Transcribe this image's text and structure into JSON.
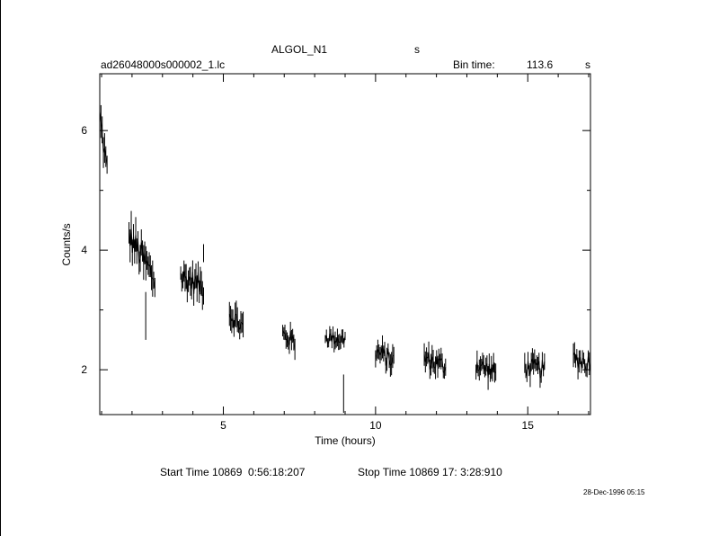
{
  "header": {
    "title": "ALGOL_N1",
    "title_suffix": "s",
    "filename": "ad26048000s000002_1.lc",
    "bin_time_label": "Bin time:",
    "bin_time_value": "113.6",
    "bin_time_unit": "s"
  },
  "footer": {
    "start_time": "Start Time 10869  0:56:18:207",
    "stop_time": "Stop Time 10869 17: 3:28:910",
    "timestamp": "28-Dec-1996 05:15"
  },
  "chart_data": {
    "type": "scatter",
    "xlabel": "Time (hours)",
    "ylabel": "Counts/s",
    "xlim": [
      0.94,
      17.06
    ],
    "ylim": [
      1.25,
      6.95
    ],
    "x_ticks": [
      5,
      10,
      15
    ],
    "y_ticks": [
      2,
      4,
      6
    ],
    "error_bars": true,
    "grid": false,
    "segments": [
      {
        "x_start": 0.94,
        "x_end": 1.18,
        "mean_start": 6.25,
        "mean_end": 5.3,
        "spread": 0.22
      },
      {
        "x_start": 1.9,
        "x_end": 2.75,
        "mean_start": 4.25,
        "mean_end": 3.5,
        "spread": 0.25
      },
      {
        "x_start": 3.6,
        "x_end": 4.35,
        "mean_start": 3.55,
        "mean_end": 3.4,
        "spread": 0.2
      },
      {
        "x_start": 5.2,
        "x_end": 5.65,
        "mean_start": 2.95,
        "mean_end": 2.7,
        "spread": 0.18
      },
      {
        "x_start": 6.95,
        "x_end": 7.35,
        "mean_start": 2.6,
        "mean_end": 2.45,
        "spread": 0.15
      },
      {
        "x_start": 8.35,
        "x_end": 9.0,
        "mean_start": 2.55,
        "mean_end": 2.5,
        "spread": 0.12
      },
      {
        "x_start": 10.0,
        "x_end": 10.6,
        "mean_start": 2.3,
        "mean_end": 2.15,
        "spread": 0.16
      },
      {
        "x_start": 11.6,
        "x_end": 12.3,
        "mean_start": 2.2,
        "mean_end": 2.05,
        "spread": 0.16
      },
      {
        "x_start": 13.3,
        "x_end": 13.95,
        "mean_start": 2.1,
        "mean_end": 1.95,
        "spread": 0.16
      },
      {
        "x_start": 14.9,
        "x_end": 15.55,
        "mean_start": 2.05,
        "mean_end": 2.0,
        "spread": 0.16
      },
      {
        "x_start": 16.5,
        "x_end": 17.06,
        "mean_start": 2.2,
        "mean_end": 2.1,
        "spread": 0.16
      }
    ],
    "outliers": [
      {
        "x": 2.45,
        "y": 2.9,
        "err": 0.4
      },
      {
        "x": 4.35,
        "y": 3.95,
        "err": 0.15
      },
      {
        "x": 8.95,
        "y": 1.6,
        "err": 0.32
      }
    ]
  }
}
